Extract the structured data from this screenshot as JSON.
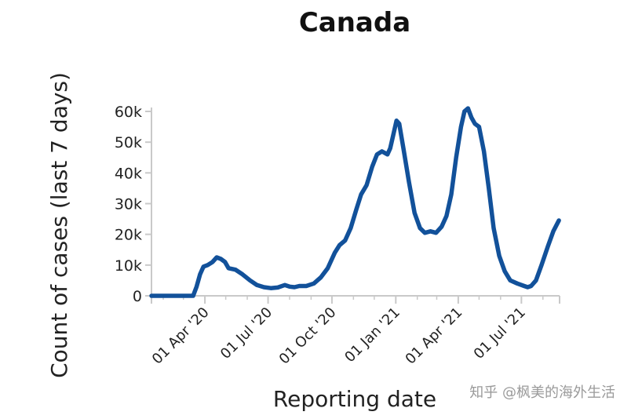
{
  "chart_data": {
    "type": "line",
    "title": "Canada",
    "xlabel": "Reporting date",
    "ylabel": "Count of cases (last 7 days)",
    "ylim": [
      0,
      60000
    ],
    "y_ticks": [
      0,
      10000,
      20000,
      30000,
      40000,
      50000,
      60000
    ],
    "y_tick_labels": [
      "0",
      "10k",
      "20k",
      "30k",
      "40k",
      "50k",
      "60k"
    ],
    "x_range": [
      "2020-01-15",
      "2021-08-25"
    ],
    "x_ticks": [
      "2020-04-01",
      "2020-07-01",
      "2020-10-01",
      "2021-01-01",
      "2021-04-01",
      "2021-07-01"
    ],
    "x_tick_labels": [
      "01 Apr '20",
      "01 Jul '20",
      "01 Oct '20",
      "01 Jan '21",
      "01 Apr '21",
      "01 Jul '21"
    ],
    "grid": false,
    "line_color": "#12519a",
    "series": [
      {
        "points": [
          [
            "2020-01-15",
            0
          ],
          [
            "2020-03-01",
            0
          ],
          [
            "2020-03-15",
            0
          ],
          [
            "2020-03-20",
            3000
          ],
          [
            "2020-03-25",
            7000
          ],
          [
            "2020-03-30",
            9500
          ],
          [
            "2020-04-05",
            10000
          ],
          [
            "2020-04-12",
            11000
          ],
          [
            "2020-04-18",
            12500
          ],
          [
            "2020-04-24",
            12000
          ],
          [
            "2020-04-30",
            11000
          ],
          [
            "2020-05-05",
            9000
          ],
          [
            "2020-05-15",
            8500
          ],
          [
            "2020-05-25",
            7000
          ],
          [
            "2020-06-05",
            5000
          ],
          [
            "2020-06-15",
            3500
          ],
          [
            "2020-06-25",
            2800
          ],
          [
            "2020-07-05",
            2500
          ],
          [
            "2020-07-15",
            2700
          ],
          [
            "2020-07-25",
            3500
          ],
          [
            "2020-08-01",
            3000
          ],
          [
            "2020-08-08",
            2800
          ],
          [
            "2020-08-15",
            3200
          ],
          [
            "2020-08-25",
            3200
          ],
          [
            "2020-09-05",
            4000
          ],
          [
            "2020-09-15",
            6000
          ],
          [
            "2020-09-25",
            9000
          ],
          [
            "2020-10-05",
            14000
          ],
          [
            "2020-10-12",
            16500
          ],
          [
            "2020-10-20",
            18000
          ],
          [
            "2020-10-28",
            22000
          ],
          [
            "2020-11-05",
            28000
          ],
          [
            "2020-11-12",
            33000
          ],
          [
            "2020-11-20",
            36000
          ],
          [
            "2020-11-28",
            42000
          ],
          [
            "2020-12-05",
            46000
          ],
          [
            "2020-12-12",
            47000
          ],
          [
            "2020-12-20",
            46000
          ],
          [
            "2020-12-24",
            48000
          ],
          [
            "2020-12-28",
            52000
          ],
          [
            "2021-01-02",
            57000
          ],
          [
            "2021-01-06",
            56000
          ],
          [
            "2021-01-12",
            48000
          ],
          [
            "2021-01-20",
            37000
          ],
          [
            "2021-01-28",
            27000
          ],
          [
            "2021-02-05",
            22000
          ],
          [
            "2021-02-12",
            20500
          ],
          [
            "2021-02-20",
            21000
          ],
          [
            "2021-02-28",
            20500
          ],
          [
            "2021-03-08",
            22500
          ],
          [
            "2021-03-15",
            26000
          ],
          [
            "2021-03-22",
            33000
          ],
          [
            "2021-03-29",
            45000
          ],
          [
            "2021-04-05",
            55000
          ],
          [
            "2021-04-10",
            60000
          ],
          [
            "2021-04-15",
            61000
          ],
          [
            "2021-04-20",
            58000
          ],
          [
            "2021-04-25",
            56000
          ],
          [
            "2021-05-01",
            55000
          ],
          [
            "2021-05-08",
            47000
          ],
          [
            "2021-05-15",
            35000
          ],
          [
            "2021-05-22",
            22000
          ],
          [
            "2021-05-30",
            13000
          ],
          [
            "2021-06-07",
            8000
          ],
          [
            "2021-06-15",
            5000
          ],
          [
            "2021-06-25",
            4000
          ],
          [
            "2021-07-05",
            3200
          ],
          [
            "2021-07-10",
            2800
          ],
          [
            "2021-07-15",
            3200
          ],
          [
            "2021-07-22",
            5000
          ],
          [
            "2021-07-30",
            10000
          ],
          [
            "2021-08-08",
            16000
          ],
          [
            "2021-08-16",
            21000
          ],
          [
            "2021-08-24",
            24500
          ]
        ]
      }
    ]
  },
  "watermark": "知乎 @枫美的海外生活"
}
